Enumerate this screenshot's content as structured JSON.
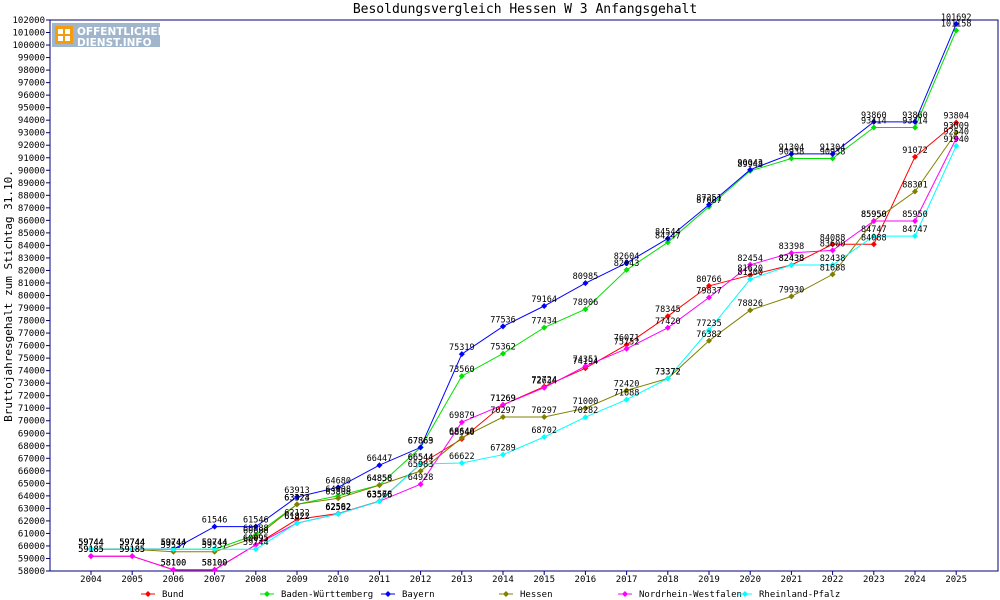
{
  "logo": {
    "line1": "OFFENTLICHER",
    "line2": "DIENST.INFO"
  },
  "chart_data": {
    "type": "line",
    "title": "Besoldungsvergleich Hessen W 3 Anfangsgehalt",
    "xlabel": "",
    "ylabel": "Bruttojahresgehalt zum Stichtag 31.10.",
    "ylim": [
      58000,
      102000
    ],
    "ystep": 1000,
    "grid": false,
    "legend_position": "bottom",
    "x": [
      "2004",
      "2005",
      "2006",
      "2007",
      "2008",
      "2009",
      "2010",
      "2011",
      "2012",
      "2013",
      "2014",
      "2015",
      "2016",
      "2017",
      "2018",
      "2019",
      "2020",
      "2021",
      "2022",
      "2023",
      "2024",
      "2025"
    ],
    "series": [
      {
        "name": "Bund",
        "color": "#ff0000",
        "values": [
          59185,
          59185,
          58100,
          58100,
          60095,
          62122,
          62592,
          63578,
          66544,
          68540,
          71269,
          72724,
          74194,
          76071,
          78345,
          80766,
          81620,
          82438,
          84088,
          84088,
          91072,
          93804
        ],
        "labels": [
          "59185",
          "59185",
          "58100",
          "58100",
          "60095",
          "62122",
          "62592",
          "63578",
          "66544",
          "68540",
          "71269",
          "72724",
          "74194",
          "76071",
          "78345",
          "80766",
          "81620",
          "82438",
          "84088",
          "84088",
          "91072",
          "93804"
        ]
      },
      {
        "name": "Baden-Württemberg",
        "color": "#00e000",
        "values": [
          59744,
          59744,
          59744,
          59744,
          60888,
          63324,
          64008,
          64858,
          67863,
          73560,
          75362,
          77434,
          78906,
          82043,
          84247,
          87087,
          89948,
          90938,
          90938,
          93414,
          93414,
          101158
        ],
        "labels": [
          "59744",
          "59744",
          "59744",
          "59744",
          "60888",
          "63324",
          "64008",
          "64858",
          "67863",
          "73560",
          "75362",
          "77434",
          "78906",
          "82043",
          "84247",
          "87087",
          "89948",
          "90938",
          "90938",
          "93414",
          "93414",
          "101158"
        ]
      },
      {
        "name": "Bayern",
        "color": "#0000ff",
        "values": [
          59744,
          59744,
          59744,
          61546,
          61546,
          63913,
          64680,
          66447,
          67869,
          75319,
          77536,
          79164,
          80985,
          82604,
          84544,
          87251,
          90043,
          91304,
          91304,
          93860,
          93860,
          101692
        ],
        "labels": [
          "59744",
          "59744",
          "59744",
          "61546",
          "61546",
          "63913",
          "64680",
          "66447",
          "67869",
          "75319",
          "77536",
          "79164",
          "80985",
          "82604",
          "84544",
          "87251",
          "90043",
          "91304",
          "91304",
          "93860",
          "93860",
          "101692"
        ]
      },
      {
        "name": "Hessen",
        "color": "#808000",
        "values": [
          59744,
          59744,
          59537,
          59537,
          60688,
          63323,
          63808,
          64858,
          65983,
          68640,
          70297,
          70297,
          71000,
          72420,
          73372,
          76382,
          78826,
          79930,
          81688,
          85950,
          88301,
          93009
        ],
        "labels": [
          "59744",
          "59744",
          "59537",
          "59537",
          "60688",
          "63323",
          "63808",
          "64858",
          "65983",
          "68640",
          "70297",
          "70297",
          "71000",
          "72420",
          "73372",
          "76382",
          "78826",
          "79930",
          "81688",
          "85950",
          "88301",
          "93009"
        ]
      },
      {
        "name": "Nordrhein-Westfalen",
        "color": "#ff00ff",
        "values": [
          59185,
          59185,
          58100,
          58100,
          60095,
          61822,
          62562,
          63566,
          64928,
          69879,
          71269,
          72634,
          74351,
          75752,
          77420,
          79837,
          82454,
          83398,
          83600,
          85950,
          85950,
          92540
        ],
        "labels": [
          "59185",
          "59185",
          "58100",
          "58100",
          "60095",
          "61822",
          "62562",
          "63566",
          "64928",
          "69879",
          "71269",
          "72634",
          "74351",
          "75752",
          "77420",
          "79837",
          "82454",
          "83398",
          "83600",
          "85950",
          "85950",
          "92540"
        ]
      },
      {
        "name": "Rheinland-Pfalz",
        "color": "#00ffff",
        "values": [
          59744,
          59744,
          59744,
          59744,
          59744,
          61822,
          62562,
          63566,
          66544,
          66622,
          67289,
          68702,
          70282,
          71688,
          73372,
          77235,
          81300,
          82438,
          82438,
          84747,
          84747,
          91940
        ],
        "labels": [
          "59744",
          "59744",
          "59744",
          "59744",
          "59744",
          "61822",
          "62562",
          "63566",
          "66544",
          "66622",
          "67289",
          "68702",
          "70282",
          "71688",
          "73372",
          "77235",
          "81300",
          "82438",
          "82438",
          "84747",
          "84747",
          "91940"
        ]
      }
    ]
  }
}
